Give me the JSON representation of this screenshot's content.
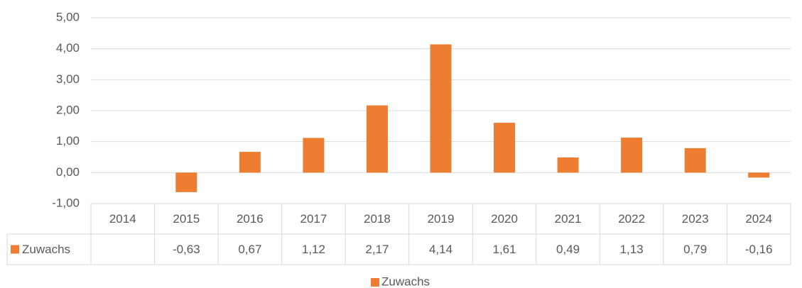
{
  "chart_data": {
    "type": "bar",
    "categories": [
      "2014",
      "2015",
      "2016",
      "2017",
      "2018",
      "2019",
      "2020",
      "2021",
      "2022",
      "2023",
      "2024"
    ],
    "series": [
      {
        "name": "Zuwachs",
        "color": "#ed7d31",
        "values": [
          null,
          -0.63,
          0.67,
          1.12,
          2.17,
          4.14,
          1.61,
          0.49,
          1.13,
          0.79,
          -0.16
        ],
        "value_labels": [
          null,
          "-0,63",
          "0,67",
          "1,12",
          "2,17",
          "4,14",
          "1,61",
          "0,49",
          "1,13",
          "0,79",
          "-0,16"
        ]
      }
    ],
    "ylim": [
      -1,
      5
    ],
    "yticks": [
      {
        "value": -1,
        "label": "-1,00"
      },
      {
        "value": 0,
        "label": "0,00"
      },
      {
        "value": 1,
        "label": "1,00"
      },
      {
        "value": 2,
        "label": "2,00"
      },
      {
        "value": 3,
        "label": "3,00"
      },
      {
        "value": 4,
        "label": "4,00"
      },
      {
        "value": 5,
        "label": "5,00"
      }
    ],
    "grid": true,
    "legend": "bottom"
  }
}
